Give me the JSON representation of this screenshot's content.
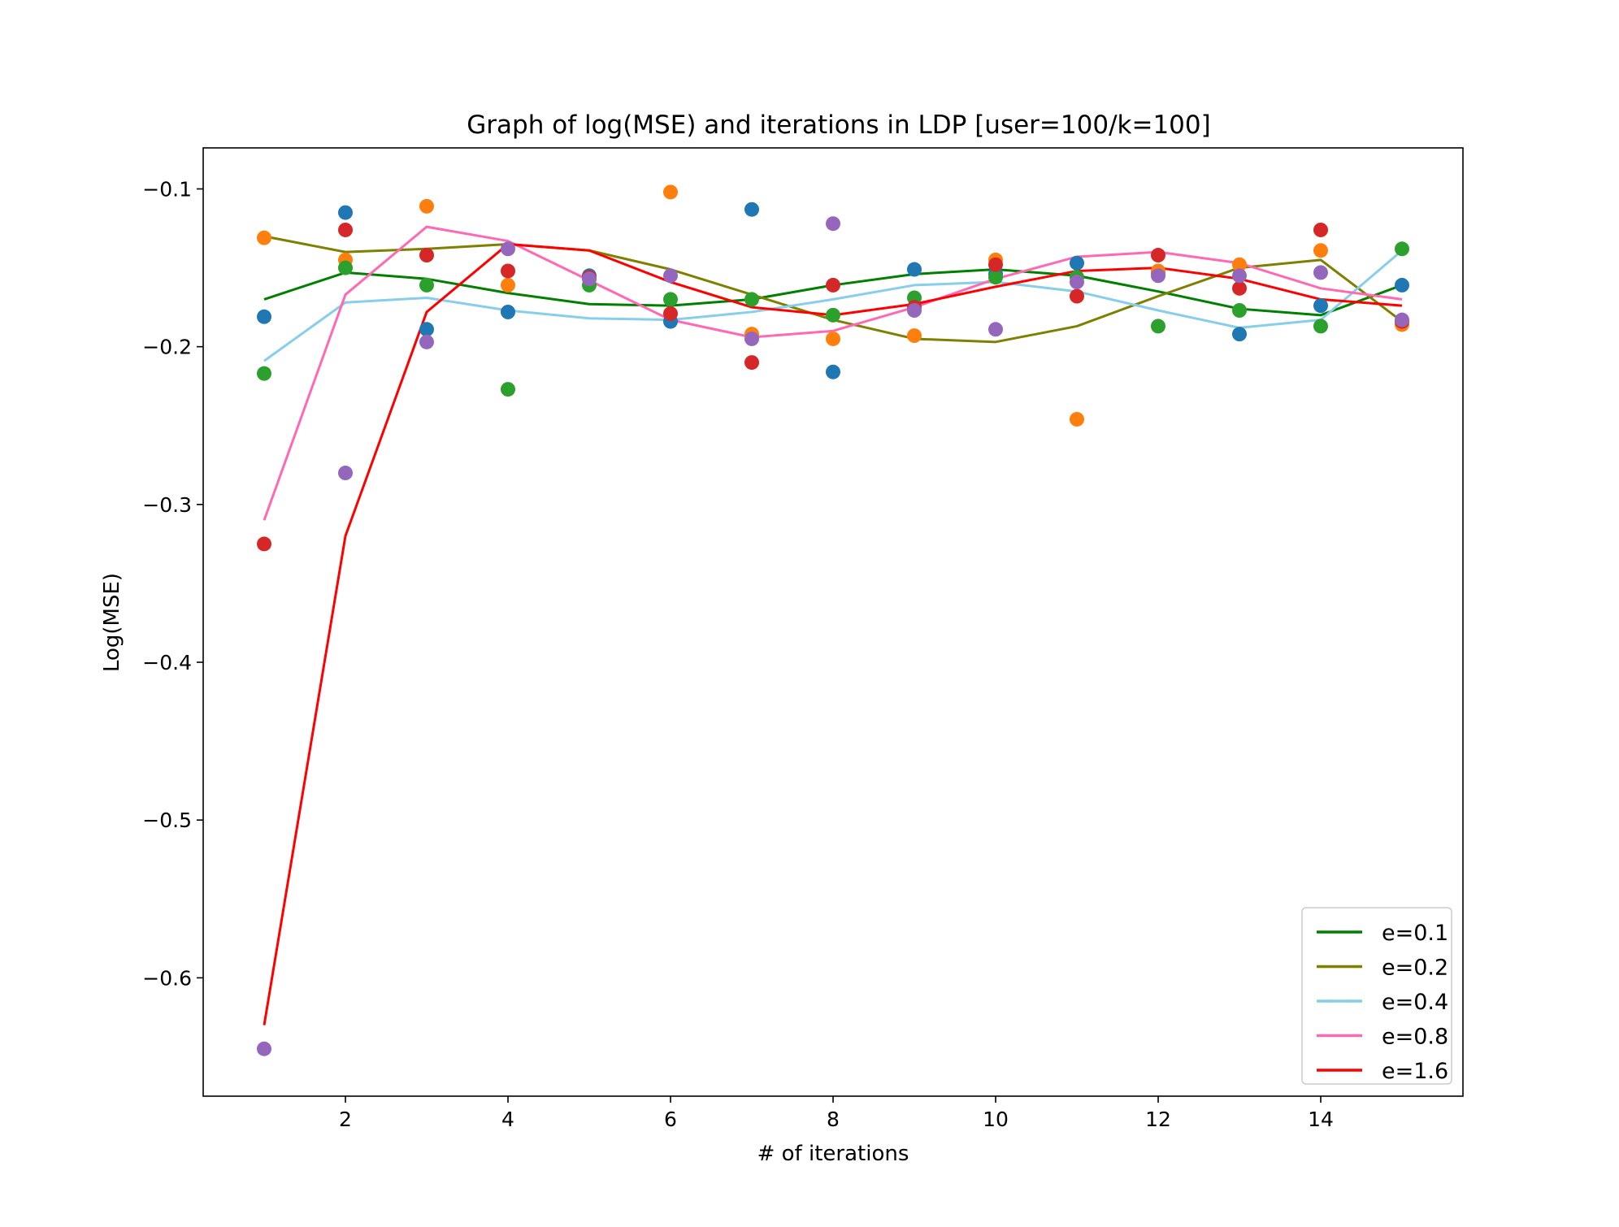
{
  "chart_data": {
    "type": "line",
    "title": "Graph of log(MSE) and iterations in LDP [user=100/k=100]",
    "xlabel": "# of iterations",
    "ylabel": "Log(MSE)",
    "xlim": [
      0.25,
      15.75
    ],
    "ylim": [
      -0.675,
      -0.074
    ],
    "xticks": [
      2,
      4,
      6,
      8,
      10,
      12,
      14
    ],
    "xtick_labels": [
      "2",
      "4",
      "6",
      "8",
      "10",
      "12",
      "14"
    ],
    "yticks": [
      -0.6,
      -0.5,
      -0.4,
      -0.3,
      -0.2,
      -0.1
    ],
    "ytick_labels": [
      "−0.6",
      "−0.5",
      "−0.4",
      "−0.3",
      "−0.2",
      "−0.1"
    ],
    "legend_position": "lower-right",
    "x": [
      1,
      2,
      3,
      4,
      5,
      6,
      7,
      8,
      9,
      10,
      11,
      12,
      13,
      14,
      15
    ],
    "series": [
      {
        "name": "e=0.1",
        "color": "#008000",
        "values": [
          -0.17,
          -0.153,
          -0.157,
          -0.166,
          -0.173,
          -0.174,
          -0.17,
          -0.161,
          -0.154,
          -0.151,
          -0.155,
          -0.165,
          -0.176,
          -0.18,
          -0.161
        ]
      },
      {
        "name": "e=0.2",
        "color": "#808000",
        "values": [
          -0.13,
          -0.14,
          -0.138,
          -0.135,
          -0.139,
          -0.151,
          -0.167,
          -0.183,
          -0.195,
          -0.197,
          -0.187,
          -0.168,
          -0.15,
          -0.145,
          -0.184
        ]
      },
      {
        "name": "e=0.4",
        "color": "#87ceeb",
        "values": [
          -0.209,
          -0.172,
          -0.169,
          -0.177,
          -0.182,
          -0.183,
          -0.178,
          -0.17,
          -0.161,
          -0.159,
          -0.165,
          -0.177,
          -0.188,
          -0.183,
          -0.139
        ]
      },
      {
        "name": "e=0.8",
        "color": "#ff69b4",
        "values": [
          -0.31,
          -0.167,
          -0.124,
          -0.133,
          -0.158,
          -0.183,
          -0.194,
          -0.19,
          -0.175,
          -0.157,
          -0.143,
          -0.14,
          -0.147,
          -0.163,
          -0.17
        ]
      },
      {
        "name": "e=1.6",
        "color": "#ff0000",
        "values": [
          -0.63,
          -0.32,
          -0.178,
          -0.135,
          -0.139,
          -0.159,
          -0.175,
          -0.18,
          -0.173,
          -0.162,
          -0.152,
          -0.15,
          -0.157,
          -0.17,
          -0.174
        ]
      }
    ],
    "scatter_series": [
      {
        "color": "#1f77b4",
        "values": [
          -0.181,
          -0.115,
          -0.189,
          -0.178,
          -0.155,
          -0.184,
          -0.113,
          -0.216,
          -0.151,
          -0.154,
          -0.147,
          -0.153,
          -0.192,
          -0.174,
          -0.161
        ]
      },
      {
        "color": "#ff7f0e",
        "values": [
          -0.131,
          -0.145,
          -0.111,
          -0.161,
          -0.157,
          -0.102,
          -0.192,
          -0.195,
          -0.193,
          -0.145,
          -0.246,
          -0.152,
          -0.148,
          -0.139,
          -0.186
        ]
      },
      {
        "color": "#2ca02c",
        "values": [
          -0.217,
          -0.15,
          -0.161,
          -0.227,
          -0.161,
          -0.17,
          -0.17,
          -0.18,
          -0.169,
          -0.156,
          -0.156,
          -0.187,
          -0.177,
          -0.187,
          -0.138
        ]
      },
      {
        "color": "#d62728",
        "values": [
          -0.325,
          -0.126,
          -0.142,
          -0.152,
          -0.156,
          -0.179,
          -0.21,
          -0.161,
          -0.175,
          -0.148,
          -0.168,
          -0.142,
          -0.163,
          -0.126,
          -0.184
        ]
      },
      {
        "color": "#9467bd",
        "values": [
          -0.645,
          -0.28,
          -0.197,
          -0.138,
          -0.157,
          -0.155,
          -0.195,
          -0.122,
          -0.177,
          -0.189,
          -0.159,
          -0.155,
          -0.155,
          -0.153,
          -0.183
        ]
      }
    ]
  }
}
